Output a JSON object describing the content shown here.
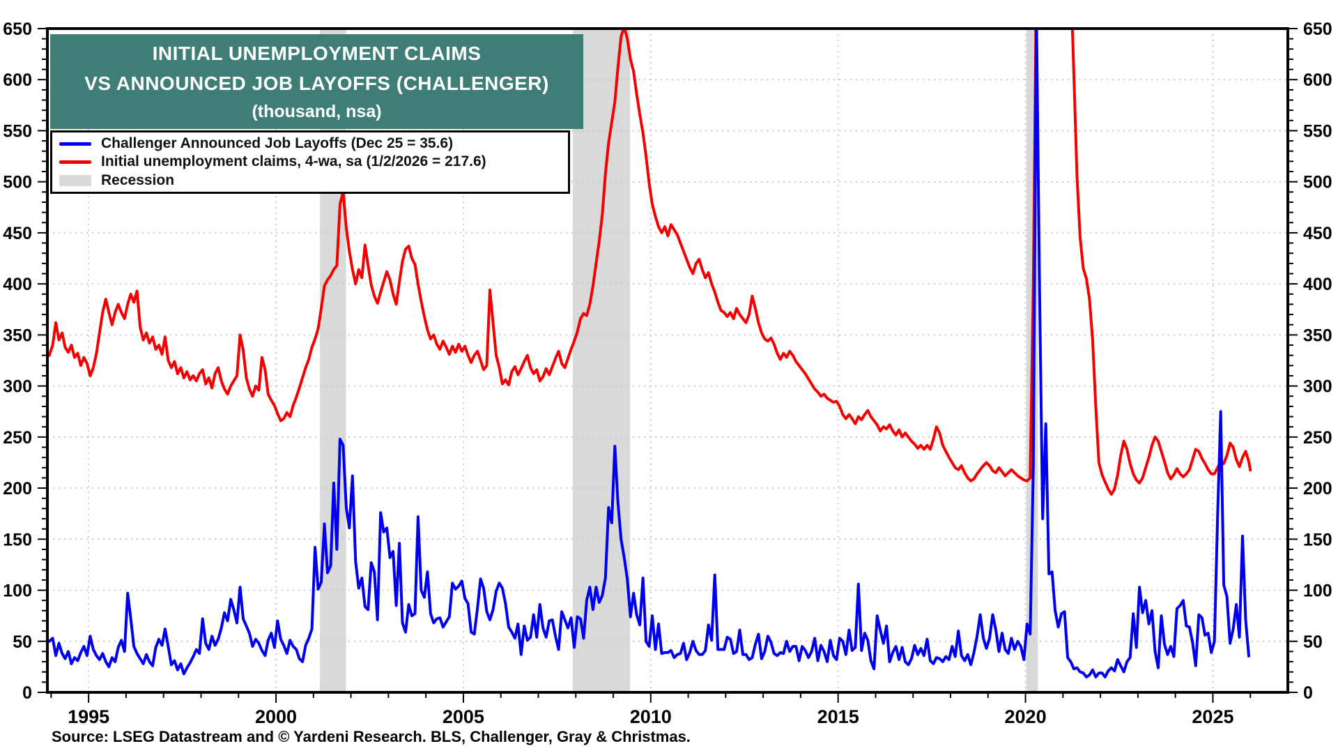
{
  "title": {
    "line1": "INITIAL UNEMPLOYMENT CLAIMS",
    "line2": "VS ANNOUNCED JOB LAYOFFS (CHALLENGER)",
    "units": "(thousand, nsa)",
    "bg_color": "#3E7E76",
    "text_color": "#FFFFFF"
  },
  "legend": {
    "items": [
      {
        "label": "Challenger Announced Job Layoffs (Dec 25 = 35.6)",
        "swatch": "line",
        "color": "#0000EE"
      },
      {
        "label": "Initial unemployment claims, 4-wa, sa (1/2/2026 = 217.6)",
        "swatch": "line",
        "color": "#F40000"
      },
      {
        "label": "Recession",
        "swatch": "rect",
        "color": "#D9D9D9"
      }
    ]
  },
  "source": "Source: LSEG Datastream and © Yardeni Research. BLS, Challenger, Gray & Christmas.",
  "chart_data": {
    "type": "line",
    "title": "INITIAL UNEMPLOYMENT CLAIMS VS ANNOUNCED JOB LAYOFFS (CHALLENGER)",
    "units": "thousand, nsa",
    "grid": true,
    "legend_position": "top-left",
    "x_range": [
      1993.9,
      2027.0
    ],
    "y_range": [
      0,
      650
    ],
    "y_tick_step": 50,
    "y_minor_step": 10,
    "y_tick_labels": [
      "0",
      "50",
      "100",
      "150",
      "200",
      "250",
      "300",
      "350",
      "400",
      "450",
      "500",
      "550",
      "600",
      "650"
    ],
    "x_tick_years": [
      1995,
      2000,
      2005,
      2010,
      2015,
      2020,
      2025
    ],
    "x_tick_labels": [
      "1995",
      "2000",
      "2005",
      "2010",
      "2015",
      "2020",
      "2025"
    ],
    "x_minor_year_range": [
      1994,
      2026
    ],
    "grid_color": "#C9C9C9",
    "recession_color": "#D9D9D9",
    "recessions": [
      [
        2001.17,
        2001.87
      ],
      [
        2007.92,
        2009.45
      ],
      [
        2020.02,
        2020.33
      ]
    ],
    "series": [
      {
        "name": "Initial unemployment claims, 4-wa, sa",
        "last_label": "1/2/2026 = 217.6",
        "color": "#F40000",
        "start_year": 1994,
        "points_per_year": 12,
        "pre_point": [
          1993.95,
          330
        ],
        "post_point": [
          2026.0,
          217.6
        ],
        "values": [
          340,
          362,
          345,
          352,
          338,
          333,
          340,
          328,
          332,
          320,
          328,
          322,
          310,
          318,
          332,
          352,
          372,
          385,
          372,
          360,
          372,
          380,
          372,
          366,
          380,
          390,
          382,
          393,
          358,
          345,
          352,
          342,
          348,
          336,
          340,
          331,
          348,
          325,
          318,
          324,
          312,
          318,
          308,
          314,
          306,
          310,
          305,
          312,
          316,
          302,
          308,
          298,
          312,
          318,
          305,
          297,
          292,
          300,
          305,
          310,
          350,
          335,
          308,
          297,
          290,
          300,
          296,
          328,
          316,
          292,
          286,
          281,
          273,
          266,
          268,
          274,
          270,
          281,
          289,
          298,
          308,
          318,
          326,
          338,
          346,
          356,
          376,
          398,
          404,
          408,
          414,
          418,
          478,
          490,
          455,
          432,
          414,
          400,
          414,
          406,
          438,
          418,
          399,
          388,
          381,
          392,
          402,
          412,
          404,
          390,
          380,
          402,
          422,
          434,
          437,
          425,
          419,
          400,
          383,
          368,
          355,
          346,
          350,
          341,
          336,
          344,
          338,
          331,
          339,
          333,
          341,
          334,
          339,
          330,
          323,
          330,
          334,
          325,
          316,
          320,
          394,
          362,
          330,
          318,
          302,
          306,
          301,
          314,
          319,
          311,
          317,
          324,
          330,
          318,
          312,
          316,
          305,
          309,
          317,
          311,
          319,
          327,
          334,
          322,
          318,
          327,
          336,
          344,
          353,
          366,
          371,
          369,
          380,
          398,
          420,
          442,
          468,
          508,
          538,
          558,
          578,
          612,
          642,
          652,
          640,
          620,
          608,
          586,
          566,
          548,
          525,
          498,
          478,
          466,
          456,
          450,
          456,
          447,
          458,
          453,
          448,
          440,
          432,
          424,
          416,
          410,
          420,
          424,
          414,
          406,
          411,
          400,
          392,
          382,
          374,
          372,
          368,
          372,
          366,
          376,
          370,
          366,
          362,
          370,
          388,
          376,
          362,
          352,
          346,
          344,
          347,
          341,
          332,
          326,
          332,
          328,
          334,
          330,
          324,
          320,
          316,
          312,
          307,
          302,
          297,
          294,
          290,
          292,
          288,
          286,
          284,
          285,
          280,
          272,
          268,
          272,
          268,
          263,
          270,
          267,
          272,
          276,
          270,
          266,
          262,
          256,
          260,
          258,
          262,
          256,
          252,
          257,
          250,
          254,
          250,
          246,
          243,
          239,
          242,
          238,
          242,
          238,
          248,
          260,
          254,
          242,
          236,
          230,
          225,
          220,
          218,
          222,
          215,
          210,
          207,
          209,
          214,
          218,
          222,
          225,
          222,
          217,
          215,
          220,
          216,
          212,
          215,
          218,
          215,
          212,
          210,
          208,
          207,
          210,
          400,
          5000,
          3800,
          2400,
          1500,
          1150,
          950,
          840,
          780,
          830,
          880,
          820,
          736,
          605,
          505,
          445,
          415,
          405,
          385,
          345,
          280,
          225,
          213,
          206,
          199,
          194,
          199,
          213,
          232,
          246,
          238,
          224,
          214,
          208,
          205,
          210,
          220,
          230,
          242,
          250,
          246,
          236,
          226,
          215,
          209,
          213,
          219,
          214,
          211,
          214,
          218,
          228,
          238,
          236,
          229,
          224,
          218,
          214,
          214,
          220,
          226,
          224,
          232,
          244,
          240,
          228,
          221,
          230,
          236,
          226
        ]
      },
      {
        "name": "Challenger Announced Job Layoffs",
        "last_label": "Dec 25 = 35.6",
        "color": "#0000EE",
        "start_year": 1994,
        "points_per_year": 12,
        "pre_point": [
          1993.95,
          50
        ],
        "post_point": null,
        "values": [
          53,
          36,
          48,
          38,
          33,
          40,
          28,
          34,
          31,
          39,
          45,
          36,
          55,
          42,
          36,
          32,
          38,
          30,
          25,
          34,
          30,
          44,
          51,
          40,
          97,
          72,
          45,
          38,
          33,
          28,
          37,
          30,
          26,
          44,
          52,
          46,
          62,
          45,
          27,
          31,
          22,
          28,
          18,
          24,
          29,
          35,
          42,
          38,
          72,
          48,
          42,
          55,
          46,
          52,
          63,
          78,
          70,
          91,
          81,
          68,
          103,
          72,
          65,
          58,
          45,
          52,
          48,
          41,
          36,
          51,
          58,
          44,
          70,
          52,
          46,
          38,
          51,
          45,
          42,
          33,
          30,
          46,
          53,
          62,
          142,
          101,
          108,
          165,
          117,
          124,
          205,
          140,
          248,
          242,
          181,
          161,
          212,
          128,
          102,
          112,
          84,
          81,
          127,
          118,
          71,
          176,
          157,
          161,
          132,
          138,
          85,
          146,
          68,
          59,
          86,
          75,
          77,
          172,
          100,
          93,
          118,
          77,
          68,
          72,
          73,
          64,
          69,
          74,
          107,
          101,
          104,
          109,
          92,
          87,
          59,
          57,
          82,
          111,
          102,
          79,
          71,
          81,
          99,
          107,
          102,
          87,
          64,
          59,
          53,
          67,
          37,
          65,
          51,
          54,
          76,
          54,
          86,
          63,
          54,
          70,
          71,
          55,
          42,
          79,
          71,
          63,
          73,
          44,
          74,
          72,
          53,
          90,
          103,
          81,
          103,
          88,
          95,
          112,
          181,
          166,
          241,
          186,
          150,
          132,
          111,
          74,
          97,
          76,
          66,
          112,
          50,
          45,
          75,
          42,
          67,
          38,
          39,
          39,
          41,
          34,
          37,
          38,
          48,
          32,
          39,
          50,
          41,
          37,
          37,
          41,
          66,
          51,
          115,
          42,
          42,
          42,
          54,
          52,
          38,
          40,
          61,
          37,
          37,
          32,
          34,
          47,
          57,
          33,
          40,
          55,
          49,
          38,
          36,
          39,
          38,
          50,
          40,
          45,
          45,
          31,
          45,
          41,
          34,
          40,
          53,
          31,
          46,
          40,
          30,
          51,
          36,
          32,
          53,
          50,
          37,
          61,
          41,
          44,
          106,
          41,
          58,
          51,
          31,
          23,
          75,
          61,
          48,
          65,
          30,
          39,
          45,
          32,
          44,
          30,
          27,
          33,
          46,
          37,
          43,
          36,
          52,
          31,
          28,
          34,
          33,
          30,
          35,
          32,
          45,
          35,
          60,
          36,
          31,
          37,
          27,
          39,
          55,
          76,
          53,
          43,
          53,
          76,
          61,
          40,
          58,
          42,
          38,
          53,
          42,
          50,
          45,
          32,
          67,
          57,
          222,
          671,
          397,
          170,
          263,
          116,
          118,
          80,
          64,
          77,
          79,
          34,
          30,
          23,
          24,
          20,
          19,
          15,
          17,
          22,
          15,
          19,
          19,
          15,
          21,
          24,
          21,
          32,
          26,
          20,
          30,
          34,
          77,
          44,
          103,
          78,
          90,
          67,
          80,
          40,
          24,
          75,
          47,
          37,
          45,
          35,
          82,
          85,
          90,
          65,
          64,
          49,
          26,
          76,
          73,
          56,
          58,
          39,
          50,
          172,
          275,
          105,
          94,
          48,
          62,
          86,
          54,
          153,
          71,
          35.6
        ]
      }
    ]
  }
}
